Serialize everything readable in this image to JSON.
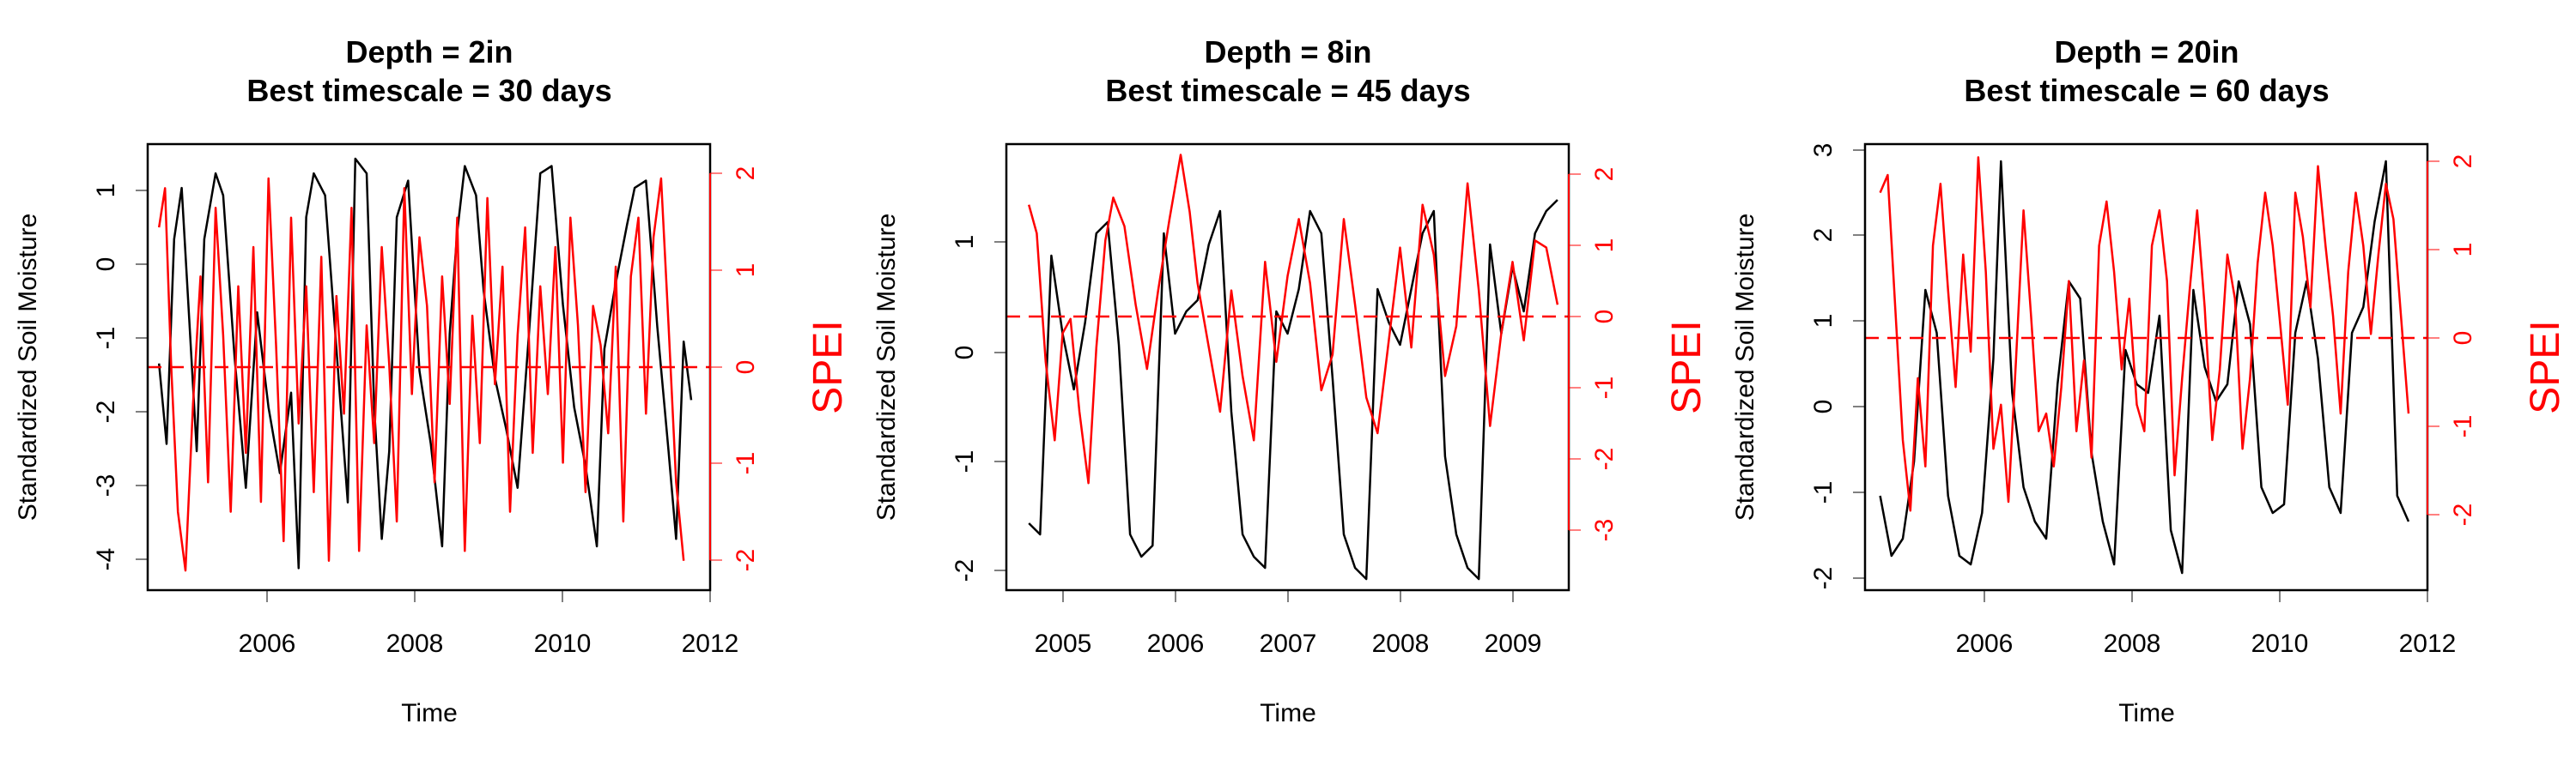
{
  "colors": {
    "soil_moisture": "#000000",
    "spei": "#ff0000",
    "axis": "#000000",
    "background": "#ffffff"
  },
  "chart_data": [
    {
      "type": "line",
      "title_line1": "Depth = 2in",
      "title_line2": "Best timescale = 30 days",
      "xlabel": "Time",
      "ylabel": "Standardized Soil Moisture",
      "y2label": "SPEI",
      "xlim": [
        2004.55,
        2012.0
      ],
      "ylim": [
        -4.5,
        1.6
      ],
      "y2lim": [
        -2.3,
        2.25
      ],
      "xticks": [
        2006,
        2008,
        2010,
        2012
      ],
      "yticks": [
        -4,
        -3,
        -2,
        -1,
        0,
        1
      ],
      "y2ticks": [
        -2,
        -1,
        0,
        1,
        2
      ],
      "reference_line": {
        "axis": "y2",
        "value": 0,
        "style": "dashed"
      },
      "series": [
        {
          "axis": "y",
          "x": [
            2004.7,
            2004.8,
            2004.9,
            2005.0,
            2005.1,
            2005.2,
            2005.3,
            2005.45,
            2005.55,
            2005.7,
            2005.85,
            2006.0,
            2006.15,
            2006.3,
            2006.45,
            2006.55,
            2006.65,
            2006.75,
            2006.9,
            2007.05,
            2007.2,
            2007.3,
            2007.45,
            2007.55,
            2007.65,
            2007.75,
            2007.85,
            2008.0,
            2008.15,
            2008.3,
            2008.45,
            2008.55,
            2008.65,
            2008.75,
            2008.9,
            2009.0,
            2009.15,
            2009.3,
            2009.45,
            2009.6,
            2009.75,
            2009.9,
            2010.05,
            2010.2,
            2010.35,
            2010.5,
            2010.6,
            2010.75,
            2010.9,
            2011.0,
            2011.15,
            2011.3,
            2011.45,
            2011.55,
            2011.65,
            2011.75
          ],
          "y": [
            -1.4,
            -2.5,
            0.3,
            1.0,
            -0.8,
            -2.6,
            0.3,
            1.2,
            0.9,
            -1.3,
            -3.1,
            -0.7,
            -2.0,
            -2.9,
            -1.8,
            -4.2,
            0.6,
            1.2,
            0.9,
            -1.2,
            -3.3,
            1.4,
            1.2,
            -2.0,
            -3.8,
            -2.6,
            0.6,
            1.1,
            -1.5,
            -2.5,
            -3.9,
            -1.0,
            0.4,
            1.3,
            0.9,
            -0.4,
            -1.6,
            -2.3,
            -3.1,
            -1.0,
            1.2,
            1.3,
            -0.6,
            -2.0,
            -2.8,
            -3.9,
            -1.2,
            -0.3,
            0.5,
            1.0,
            1.1,
            -0.9,
            -2.6,
            -3.8,
            -1.1,
            -1.9
          ]
        },
        {
          "axis": "y2",
          "x": [
            2004.7,
            2004.78,
            2004.86,
            2004.95,
            2005.05,
            2005.15,
            2005.25,
            2005.35,
            2005.45,
            2005.55,
            2005.65,
            2005.75,
            2005.85,
            2005.95,
            2006.05,
            2006.15,
            2006.25,
            2006.35,
            2006.45,
            2006.55,
            2006.65,
            2006.75,
            2006.85,
            2006.95,
            2007.05,
            2007.15,
            2007.25,
            2007.35,
            2007.45,
            2007.55,
            2007.65,
            2007.75,
            2007.85,
            2007.95,
            2008.05,
            2008.15,
            2008.25,
            2008.35,
            2008.45,
            2008.55,
            2008.65,
            2008.75,
            2008.85,
            2008.95,
            2009.05,
            2009.15,
            2009.25,
            2009.35,
            2009.45,
            2009.55,
            2009.65,
            2009.75,
            2009.85,
            2009.95,
            2010.05,
            2010.15,
            2010.25,
            2010.35,
            2010.45,
            2010.55,
            2010.65,
            2010.75,
            2010.85,
            2010.95,
            2011.05,
            2011.15,
            2011.25,
            2011.35,
            2011.45,
            2011.55,
            2011.65
          ],
          "y": [
            1.4,
            1.8,
            0.0,
            -1.5,
            -2.1,
            -0.4,
            0.9,
            -1.2,
            1.6,
            0.3,
            -1.5,
            0.8,
            -0.9,
            1.2,
            -1.4,
            1.9,
            0.2,
            -1.8,
            1.5,
            -0.6,
            0.8,
            -1.3,
            1.1,
            -2.0,
            0.7,
            -0.5,
            1.6,
            -1.9,
            0.4,
            -0.8,
            1.2,
            0.0,
            -1.6,
            1.8,
            -0.3,
            1.3,
            0.6,
            -1.2,
            0.9,
            -0.4,
            1.5,
            -1.9,
            0.5,
            -0.8,
            1.7,
            -0.2,
            1.0,
            -1.5,
            0.3,
            1.4,
            -0.9,
            0.8,
            -0.3,
            1.2,
            -1.0,
            1.5,
            0.4,
            -1.3,
            0.6,
            0.2,
            -0.7,
            1.0,
            -1.6,
            0.9,
            1.5,
            -0.5,
            1.3,
            1.9,
            0.4,
            -1.2,
            -2.0
          ]
        }
      ]
    },
    {
      "type": "line",
      "title_line1": "Depth = 8in",
      "title_line2": "Best timescale = 45 days",
      "xlabel": "Time",
      "ylabel": "Standardized Soil Moisture",
      "y2label": "SPEI",
      "xlim": [
        2004.45,
        2009.45
      ],
      "ylim": [
        -2.1,
        1.9
      ],
      "y2lim": [
        -4.0,
        2.25
      ],
      "xticks": [
        2005,
        2006,
        2007,
        2008,
        2009
      ],
      "yticks": [
        -2,
        -1,
        0,
        1
      ],
      "y2ticks": [
        -3,
        -2,
        -1,
        0,
        1,
        2
      ],
      "reference_line": {
        "axis": "y2",
        "value": 0,
        "style": "dashed"
      },
      "series": [
        {
          "axis": "y",
          "x": [
            2004.65,
            2004.75,
            2004.85,
            2004.95,
            2005.05,
            2005.15,
            2005.25,
            2005.35,
            2005.45,
            2005.55,
            2005.65,
            2005.75,
            2005.85,
            2005.95,
            2006.05,
            2006.15,
            2006.25,
            2006.35,
            2006.45,
            2006.55,
            2006.65,
            2006.75,
            2006.85,
            2006.95,
            2007.05,
            2007.15,
            2007.25,
            2007.35,
            2007.45,
            2007.55,
            2007.65,
            2007.75,
            2007.85,
            2007.95,
            2008.05,
            2008.15,
            2008.25,
            2008.35,
            2008.45,
            2008.55,
            2008.65,
            2008.75,
            2008.85,
            2008.95,
            2009.05,
            2009.15,
            2009.25,
            2009.35
          ],
          "y": [
            -1.5,
            -1.6,
            0.9,
            0.2,
            -0.3,
            0.3,
            1.1,
            1.2,
            0.1,
            -1.6,
            -1.8,
            -1.7,
            1.1,
            0.2,
            0.4,
            0.5,
            1.0,
            1.3,
            -0.5,
            -1.6,
            -1.8,
            -1.9,
            0.4,
            0.2,
            0.6,
            1.3,
            1.1,
            -0.2,
            -1.6,
            -1.9,
            -2.0,
            0.6,
            0.3,
            0.1,
            0.6,
            1.1,
            1.3,
            -0.9,
            -1.6,
            -1.9,
            -2.0,
            1.0,
            0.2,
            0.8,
            0.4,
            1.1,
            1.3,
            1.4
          ]
        },
        {
          "axis": "y2",
          "x": [
            2004.65,
            2004.72,
            2004.8,
            2004.88,
            2004.95,
            2005.02,
            2005.1,
            2005.18,
            2005.25,
            2005.33,
            2005.4,
            2005.5,
            2005.6,
            2005.7,
            2005.8,
            2005.9,
            2006.0,
            2006.08,
            2006.15,
            2006.25,
            2006.35,
            2006.45,
            2006.55,
            2006.65,
            2006.75,
            2006.85,
            2006.95,
            2007.05,
            2007.15,
            2007.25,
            2007.35,
            2007.45,
            2007.55,
            2007.65,
            2007.75,
            2007.85,
            2007.95,
            2008.05,
            2008.15,
            2008.25,
            2008.35,
            2008.45,
            2008.55,
            2008.65,
            2008.75,
            2008.85,
            2008.95,
            2009.05,
            2009.15,
            2009.25,
            2009.35
          ],
          "y": [
            1.4,
            1.0,
            -0.8,
            -1.9,
            -0.4,
            -0.2,
            -1.5,
            -2.5,
            -0.6,
            0.9,
            1.5,
            1.1,
            0.0,
            -0.9,
            0.2,
            1.2,
            2.1,
            1.3,
            0.3,
            -0.6,
            -1.5,
            0.2,
            -1.0,
            -1.9,
            0.6,
            -0.8,
            0.4,
            1.2,
            0.3,
            -1.2,
            -0.7,
            1.2,
            0.0,
            -1.3,
            -1.8,
            -0.5,
            0.8,
            -0.6,
            1.4,
            0.7,
            -1.0,
            -0.3,
            1.7,
            0.2,
            -1.7,
            -0.4,
            0.6,
            -0.5,
            0.9,
            0.8,
            0.0
          ]
        }
      ]
    },
    {
      "type": "line",
      "title_line1": "Depth = 20in",
      "title_line2": "Best timescale = 60 days",
      "xlabel": "Time",
      "ylabel": "Standardized Soil Moisture",
      "y2label": "SPEI",
      "xlim": [
        2004.55,
        2012.0
      ],
      "ylim": [
        -2.1,
        3.1
      ],
      "y2lim": [
        -3.0,
        2.05
      ],
      "xticks": [
        2006,
        2008,
        2010,
        2012
      ],
      "yticks": [
        -2,
        -1,
        0,
        1,
        2,
        3
      ],
      "y2ticks": [
        -2,
        -1,
        0,
        1,
        2
      ],
      "reference_line": {
        "axis": "y2",
        "value": 0,
        "style": "dashed"
      },
      "series": [
        {
          "axis": "y",
          "x": [
            2004.75,
            2004.9,
            2005.05,
            2005.2,
            2005.35,
            2005.5,
            2005.65,
            2005.8,
            2005.95,
            2006.1,
            2006.25,
            2006.35,
            2006.5,
            2006.65,
            2006.8,
            2006.95,
            2007.1,
            2007.25,
            2007.4,
            2007.55,
            2007.7,
            2007.85,
            2008.0,
            2008.15,
            2008.3,
            2008.45,
            2008.6,
            2008.75,
            2008.9,
            2009.05,
            2009.2,
            2009.35,
            2009.5,
            2009.65,
            2009.8,
            2009.95,
            2010.1,
            2010.25,
            2010.4,
            2010.55,
            2010.7,
            2010.85,
            2011.0,
            2011.15,
            2011.3,
            2011.45,
            2011.6,
            2011.75
          ],
          "y": [
            -1.0,
            -1.7,
            -1.5,
            -0.6,
            1.4,
            0.9,
            -1.0,
            -1.7,
            -1.8,
            -1.2,
            0.6,
            2.9,
            0.2,
            -0.9,
            -1.3,
            -1.5,
            0.3,
            1.5,
            1.3,
            -0.5,
            -1.3,
            -1.8,
            0.7,
            0.3,
            0.2,
            1.1,
            -1.4,
            -1.9,
            1.4,
            0.5,
            0.1,
            0.3,
            1.5,
            1.0,
            -0.9,
            -1.2,
            -1.1,
            0.9,
            1.5,
            0.6,
            -0.9,
            -1.2,
            0.9,
            1.2,
            2.2,
            2.9,
            -1.0,
            -1.3
          ]
        },
        {
          "axis": "y2",
          "x": [
            2004.75,
            2004.85,
            2004.95,
            2005.05,
            2005.15,
            2005.25,
            2005.35,
            2005.45,
            2005.55,
            2005.65,
            2005.75,
            2005.85,
            2005.95,
            2006.05,
            2006.15,
            2006.25,
            2006.35,
            2006.45,
            2006.55,
            2006.65,
            2006.75,
            2006.85,
            2006.95,
            2007.05,
            2007.15,
            2007.25,
            2007.35,
            2007.45,
            2007.55,
            2007.65,
            2007.75,
            2007.85,
            2007.95,
            2008.05,
            2008.15,
            2008.25,
            2008.35,
            2008.45,
            2008.55,
            2008.65,
            2008.75,
            2008.85,
            2008.95,
            2009.05,
            2009.15,
            2009.25,
            2009.35,
            2009.45,
            2009.55,
            2009.65,
            2009.75,
            2009.85,
            2009.95,
            2010.05,
            2010.15,
            2010.25,
            2010.35,
            2010.45,
            2010.55,
            2010.65,
            2010.75,
            2010.85,
            2010.95,
            2011.05,
            2011.15,
            2011.25,
            2011.35,
            2011.45,
            2011.55,
            2011.65,
            2011.75
          ],
          "y": [
            1.5,
            1.7,
            0.2,
            -1.3,
            -2.1,
            -0.6,
            -1.6,
            0.9,
            1.6,
            0.4,
            -0.7,
            0.8,
            -0.3,
            1.9,
            0.6,
            -1.4,
            -0.9,
            -2.0,
            -0.4,
            1.3,
            0.1,
            -1.2,
            -1.0,
            -1.6,
            -0.7,
            0.5,
            -1.2,
            -0.4,
            -1.5,
            0.9,
            1.4,
            0.6,
            -0.5,
            0.3,
            -0.9,
            -1.2,
            0.9,
            1.3,
            0.5,
            -1.7,
            -0.6,
            0.4,
            1.3,
            0.2,
            -1.3,
            -0.5,
            0.8,
            0.3,
            -1.4,
            -0.6,
            0.7,
            1.5,
            0.9,
            0.0,
            -0.9,
            1.5,
            1.0,
            0.2,
            1.8,
            0.9,
            0.1,
            -1.0,
            0.6,
            1.5,
            0.9,
            -0.1,
            0.8,
            1.6,
            1.2,
            0.1,
            -1.0
          ]
        }
      ]
    }
  ]
}
